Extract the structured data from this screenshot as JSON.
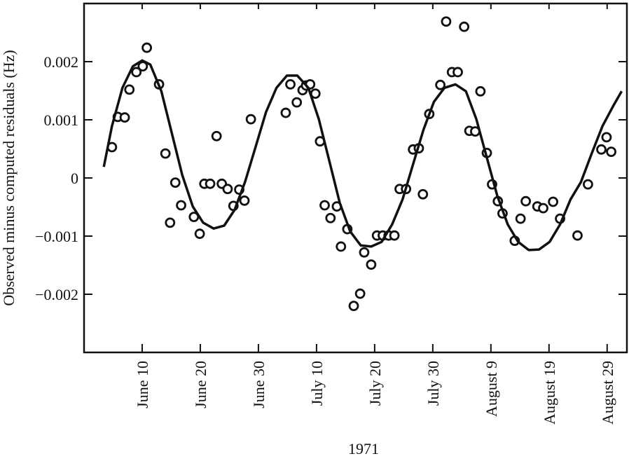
{
  "chart_data": {
    "type": "scatter",
    "x_label": "1971",
    "y_label": "Observed minus computed residuals (Hz)",
    "xlim": [
      151,
      244.4
    ],
    "ylim": [
      -0.003,
      0.003
    ],
    "xticks": [
      {
        "value": 161,
        "label": "June 10"
      },
      {
        "value": 171,
        "label": "June 20"
      },
      {
        "value": 181,
        "label": "June 30"
      },
      {
        "value": 191,
        "label": "July 10"
      },
      {
        "value": 201,
        "label": "July 20"
      },
      {
        "value": 211,
        "label": "July 30"
      },
      {
        "value": 221,
        "label": "August 9"
      },
      {
        "value": 231,
        "label": "August 19"
      },
      {
        "value": 241,
        "label": "August 29"
      }
    ],
    "yticks": [
      0.002,
      0.001,
      0,
      {
        "value": -0.001,
        "label": "−0.001"
      },
      {
        "value": -0.002,
        "label": "−0.002"
      }
    ],
    "series": [
      {
        "style": "marker",
        "color": "#111111",
        "x": [
          155.8,
          156.8,
          158.0,
          158.8,
          160.0,
          161.1,
          161.8,
          163.9,
          165.0,
          165.8,
          166.7,
          167.7,
          169.9,
          170.9,
          171.7,
          172.7,
          173.8,
          174.7,
          175.7,
          176.7,
          177.7,
          178.6,
          179.7,
          185.7,
          186.5,
          187.6,
          188.6,
          189.2,
          189.9,
          190.8,
          191.6,
          192.4,
          193.4,
          194.5,
          195.2,
          196.3,
          197.4,
          198.5,
          199.2,
          200.4,
          201.4,
          202.4,
          203.4,
          204.4,
          205.3,
          206.4,
          207.6,
          208.6,
          209.3,
          210.4,
          212.3,
          213.3,
          214.3,
          215.3,
          216.4,
          217.3,
          218.3,
          219.2,
          220.3,
          221.2,
          222.2,
          223.0,
          225.1,
          226.1,
          227.0,
          229.0,
          230.0,
          231.7,
          232.9,
          235.9,
          237.7,
          240.0,
          240.9,
          241.7
        ],
        "values": [
          0.00053,
          0.00105,
          0.00104,
          0.00152,
          0.00182,
          0.00192,
          0.00224,
          0.00161,
          0.00042,
          -0.00077,
          -8e-05,
          -0.00047,
          -0.00067,
          -0.00096,
          -0.0001,
          -0.0001,
          0.00072,
          -0.0001,
          -0.00019,
          -0.00048,
          -0.0002,
          -0.00039,
          0.00101,
          0.00112,
          0.00161,
          0.0013,
          0.00151,
          0.00159,
          0.00161,
          0.00145,
          0.00063,
          -0.00047,
          -0.00069,
          -0.00049,
          -0.00118,
          -0.00088,
          -0.0022,
          -0.00199,
          -0.00128,
          -0.00149,
          -0.00099,
          -0.00099,
          -0.00099,
          -0.00099,
          -0.00019,
          -0.00019,
          0.00049,
          0.00051,
          -0.00028,
          0.0011,
          0.0016,
          0.00269,
          0.00182,
          0.00182,
          0.0026,
          0.00081,
          0.0008,
          0.00149,
          0.00043,
          -0.00011,
          -0.0004,
          -0.00061,
          -0.00108,
          -0.0007,
          -0.0004,
          -0.00049,
          -0.00052,
          -0.00041,
          -0.0007,
          -0.00099,
          -0.00011,
          0.00049,
          0.0007,
          0.00045
        ]
      },
      {
        "style": "line",
        "color": "#111111",
        "x": [
          154.4,
          155.8,
          157.6,
          159.4,
          161.0,
          162.4,
          164.3,
          166.1,
          167.9,
          169.7,
          171.5,
          173.3,
          175.1,
          176.9,
          178.7,
          180.5,
          182.3,
          184.1,
          185.9,
          187.7,
          189.6,
          191.4,
          193.2,
          195.0,
          196.8,
          198.6,
          200.4,
          202.2,
          204.0,
          205.8,
          207.6,
          209.4,
          211.2,
          213.0,
          214.9,
          216.7,
          218.5,
          220.3,
          222.1,
          223.9,
          225.7,
          227.5,
          229.3,
          231.1,
          232.9,
          234.7,
          236.5,
          238.3,
          240.2,
          242.0,
          243.5
        ],
        "values": [
          0.00019,
          0.00089,
          0.00155,
          0.00192,
          0.00202,
          0.00195,
          0.00149,
          0.00077,
          5e-05,
          -0.00049,
          -0.00077,
          -0.00087,
          -0.00082,
          -0.00055,
          -7e-05,
          0.00053,
          0.00113,
          0.00155,
          0.00176,
          0.00176,
          0.00155,
          0.00101,
          0.00029,
          -0.00043,
          -0.00092,
          -0.00116,
          -0.00118,
          -0.0011,
          -0.0008,
          -0.00037,
          0.00023,
          0.00083,
          0.00131,
          0.00155,
          0.00161,
          0.00149,
          0.00101,
          0.00035,
          -0.00031,
          -0.0008,
          -0.0011,
          -0.00124,
          -0.00123,
          -0.0011,
          -0.0008,
          -0.00037,
          -7e-05,
          0.00041,
          0.00089,
          0.00123,
          0.00149
        ]
      }
    ]
  }
}
